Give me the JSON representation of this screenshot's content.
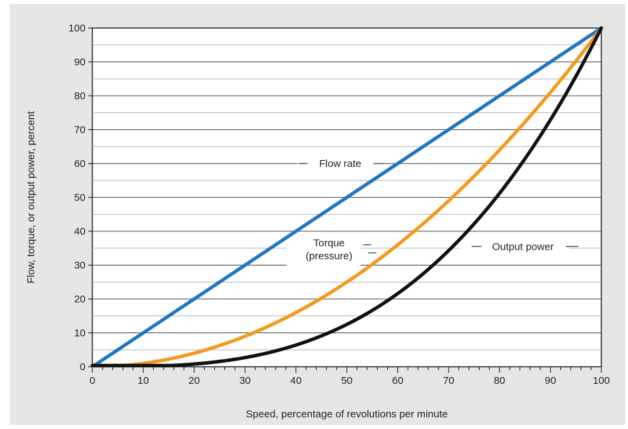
{
  "chart_data": {
    "type": "line",
    "xlabel": "Speed, percentage of revolutions per minute",
    "ylabel": "Flow, torque, or output power, percent",
    "xlim": [
      0,
      100
    ],
    "ylim": [
      0,
      100
    ],
    "x_ticks": [
      0,
      10,
      20,
      30,
      40,
      50,
      60,
      70,
      80,
      90,
      100
    ],
    "y_ticks": [
      0,
      10,
      20,
      30,
      40,
      50,
      60,
      70,
      80,
      90,
      100
    ],
    "grid": "horizontal",
    "series": [
      {
        "name": "Flow rate",
        "color": "#1f77c0",
        "x": [
          0,
          10,
          20,
          30,
          40,
          50,
          60,
          70,
          80,
          90,
          100
        ],
        "y": [
          0,
          10,
          20,
          30,
          40,
          50,
          60,
          70,
          80,
          90,
          100
        ]
      },
      {
        "name": "Torque (pressure)",
        "color": "#f39a1e",
        "x": [
          0,
          10,
          20,
          30,
          40,
          50,
          60,
          70,
          80,
          90,
          100
        ],
        "y": [
          0,
          1,
          4,
          9,
          16,
          25,
          36,
          49,
          64,
          81,
          100
        ]
      },
      {
        "name": "Output power",
        "color": "#111111",
        "x": [
          0,
          10,
          20,
          30,
          40,
          50,
          60,
          70,
          80,
          90,
          100
        ],
        "y": [
          0,
          0.1,
          0.8,
          2.7,
          6.4,
          12.5,
          21.6,
          34.3,
          51.2,
          72.9,
          100
        ]
      }
    ],
    "annotations": [
      {
        "series": "Flow rate",
        "lines": [
          "Flow rate"
        ]
      },
      {
        "series": "Torque (pressure)",
        "lines": [
          "Torque",
          "(pressure)"
        ]
      },
      {
        "series": "Output power",
        "lines": [
          "Output power"
        ]
      }
    ]
  }
}
